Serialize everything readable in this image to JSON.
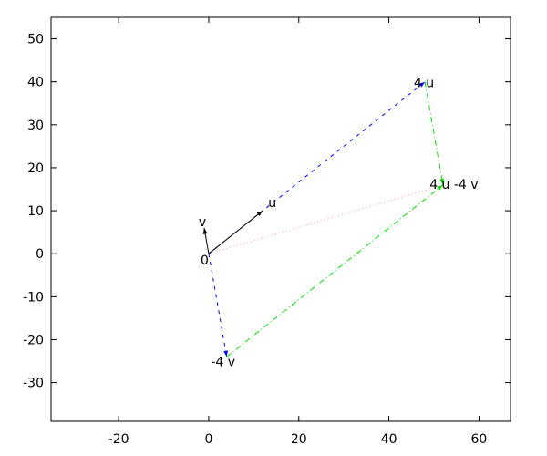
{
  "chart_data": {
    "type": "line",
    "title": "",
    "xlabel": "",
    "ylabel": "",
    "xlim": [
      -35,
      67
    ],
    "ylim": [
      -39,
      55
    ],
    "xticks": [
      -20,
      0,
      20,
      40,
      60
    ],
    "yticks": [
      -30,
      -20,
      -10,
      0,
      10,
      20,
      30,
      40,
      50
    ],
    "grid": false,
    "segments": [
      {
        "from": [
          0,
          0
        ],
        "to": [
          48,
          40
        ],
        "style": "dashed",
        "color": "#0000ff",
        "arrow": true
      },
      {
        "from": [
          0,
          0
        ],
        "to": [
          4,
          -24
        ],
        "style": "dashed",
        "color": "#0000ff",
        "arrow": true
      },
      {
        "from": [
          48,
          40
        ],
        "to": [
          52,
          16
        ],
        "style": "dashdot",
        "color": "#00dd00",
        "arrow": true
      },
      {
        "from": [
          4,
          -24
        ],
        "to": [
          52,
          16
        ],
        "style": "dashdot",
        "color": "#00dd00",
        "arrow": true
      },
      {
        "from": [
          0,
          0
        ],
        "to": [
          52,
          16
        ],
        "style": "dotted",
        "color": "#ff9999",
        "arrow": false
      },
      {
        "from": [
          0,
          0
        ],
        "to": [
          12,
          10
        ],
        "style": "solid",
        "color": "#000000",
        "arrow": true
      },
      {
        "from": [
          0,
          0
        ],
        "to": [
          -1,
          6
        ],
        "style": "solid",
        "color": "#000000",
        "arrow": true
      }
    ],
    "labels": [
      {
        "text": "0",
        "at": [
          0,
          0
        ],
        "anchor": "end",
        "dx": 0,
        "dy": 12
      },
      {
        "text": "u",
        "at": [
          12,
          10
        ],
        "anchor": "start",
        "dx": 6,
        "dy": -4
      },
      {
        "text": "v",
        "at": [
          -1,
          6
        ],
        "anchor": "middle",
        "dx": -2,
        "dy": -2
      },
      {
        "text": "4 u",
        "at": [
          48,
          40
        ],
        "anchor": "end",
        "dx": 10,
        "dy": 6
      },
      {
        "text": "-4 v",
        "at": [
          4,
          -24
        ],
        "anchor": "middle",
        "dx": -4,
        "dy": 10
      },
      {
        "text": "4 u -4 v",
        "at": [
          52,
          16
        ],
        "anchor": "middle",
        "dx": 12,
        "dy": 4
      }
    ]
  }
}
